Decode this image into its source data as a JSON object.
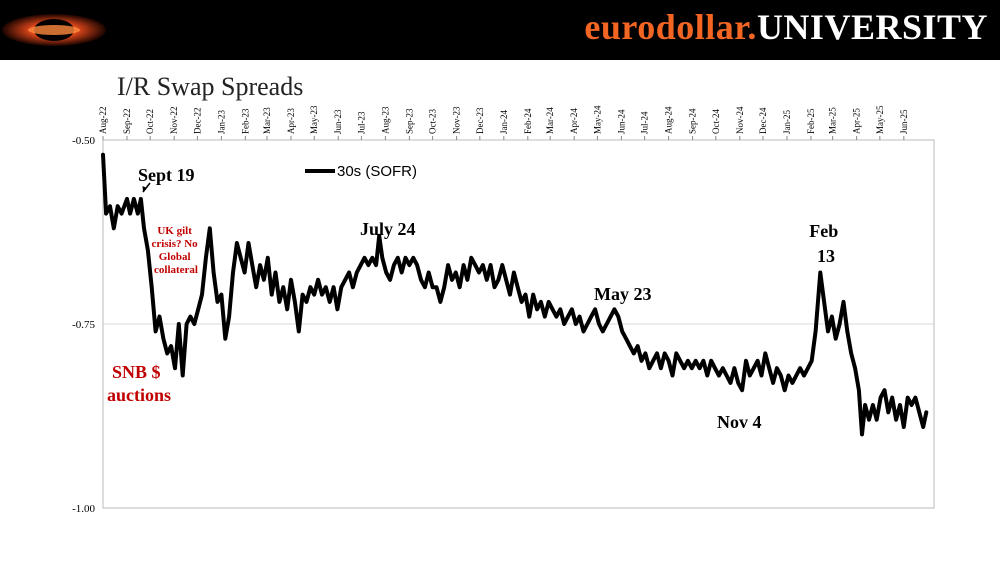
{
  "header": {
    "brand_part1": "eurodollar.",
    "brand_part2": "UNIVERSITY",
    "colors": {
      "bar": "#000000",
      "accent": "#f26522",
      "white": "#ffffff"
    }
  },
  "logo": {
    "icon": "eurodollar-university-logo"
  },
  "chart_data": {
    "type": "line",
    "title": "I/R Swap Spreads",
    "xlabel": "",
    "ylabel": "",
    "x_tick_labels": [
      "Aug-22",
      "Sep-22",
      "Oct-22",
      "Nov-22",
      "Dec-22",
      "Jan-23",
      "Feb-23",
      "Mar-23",
      "Apr-23",
      "May-23",
      "Jun-23",
      "Jul-23",
      "Aug-23",
      "Sep-23",
      "Oct-23",
      "Nov-23",
      "Dec-23",
      "Jan-24",
      "Feb-24",
      "Mar-24",
      "Apr-24",
      "May-24",
      "Jun-24",
      "Jul-24",
      "Aug-24",
      "Sep-24",
      "Oct-24",
      "Nov-24",
      "Dec-24",
      "Jan-25",
      "Feb-25",
      "Mar-25",
      "Apr-25",
      "May-25",
      "Jun-25"
    ],
    "y_tick_labels": [
      "-0.50",
      "-0.75",
      "-1.00"
    ],
    "ylim": [
      -1.0,
      -0.5
    ],
    "grid": "horizontal",
    "legend_position": "top-left",
    "series": [
      {
        "name": "30s (SOFR)",
        "color": "#000000",
        "points": [
          [
            "2022-08-01",
            -0.52
          ],
          [
            "2022-08-05",
            -0.6
          ],
          [
            "2022-08-10",
            -0.59
          ],
          [
            "2022-08-15",
            -0.62
          ],
          [
            "2022-08-20",
            -0.59
          ],
          [
            "2022-08-25",
            -0.6
          ],
          [
            "2022-09-01",
            -0.58
          ],
          [
            "2022-09-05",
            -0.6
          ],
          [
            "2022-09-10",
            -0.58
          ],
          [
            "2022-09-15",
            -0.6
          ],
          [
            "2022-09-19",
            -0.58
          ],
          [
            "2022-09-23",
            -0.62
          ],
          [
            "2022-09-28",
            -0.65
          ],
          [
            "2022-10-03",
            -0.7
          ],
          [
            "2022-10-08",
            -0.76
          ],
          [
            "2022-10-13",
            -0.74
          ],
          [
            "2022-10-18",
            -0.77
          ],
          [
            "2022-10-23",
            -0.79
          ],
          [
            "2022-10-28",
            -0.78
          ],
          [
            "2022-11-02",
            -0.81
          ],
          [
            "2022-11-07",
            -0.75
          ],
          [
            "2022-11-12",
            -0.82
          ],
          [
            "2022-11-17",
            -0.75
          ],
          [
            "2022-11-22",
            -0.74
          ],
          [
            "2022-11-27",
            -0.75
          ],
          [
            "2022-12-02",
            -0.73
          ],
          [
            "2022-12-07",
            -0.71
          ],
          [
            "2022-12-12",
            -0.66
          ],
          [
            "2022-12-17",
            -0.62
          ],
          [
            "2022-12-22",
            -0.68
          ],
          [
            "2022-12-27",
            -0.72
          ],
          [
            "2023-01-01",
            -0.71
          ],
          [
            "2023-01-06",
            -0.77
          ],
          [
            "2023-01-11",
            -0.74
          ],
          [
            "2023-01-16",
            -0.68
          ],
          [
            "2023-01-21",
            -0.64
          ],
          [
            "2023-01-26",
            -0.66
          ],
          [
            "2023-01-31",
            -0.68
          ],
          [
            "2023-02-05",
            -0.64
          ],
          [
            "2023-02-10",
            -0.67
          ],
          [
            "2023-02-15",
            -0.7
          ],
          [
            "2023-02-20",
            -0.67
          ],
          [
            "2023-02-25",
            -0.69
          ],
          [
            "2023-03-02",
            -0.66
          ],
          [
            "2023-03-07",
            -0.71
          ],
          [
            "2023-03-12",
            -0.68
          ],
          [
            "2023-03-17",
            -0.72
          ],
          [
            "2023-03-22",
            -0.7
          ],
          [
            "2023-03-27",
            -0.73
          ],
          [
            "2023-04-01",
            -0.69
          ],
          [
            "2023-04-06",
            -0.72
          ],
          [
            "2023-04-11",
            -0.76
          ],
          [
            "2023-04-16",
            -0.71
          ],
          [
            "2023-04-21",
            -0.72
          ],
          [
            "2023-04-26",
            -0.7
          ],
          [
            "2023-05-01",
            -0.71
          ],
          [
            "2023-05-06",
            -0.69
          ],
          [
            "2023-05-11",
            -0.71
          ],
          [
            "2023-05-16",
            -0.7
          ],
          [
            "2023-05-21",
            -0.72
          ],
          [
            "2023-05-26",
            -0.7
          ],
          [
            "2023-05-31",
            -0.73
          ],
          [
            "2023-06-05",
            -0.7
          ],
          [
            "2023-06-10",
            -0.69
          ],
          [
            "2023-06-15",
            -0.68
          ],
          [
            "2023-06-20",
            -0.7
          ],
          [
            "2023-06-25",
            -0.68
          ],
          [
            "2023-06-30",
            -0.67
          ],
          [
            "2023-07-05",
            -0.66
          ],
          [
            "2023-07-10",
            -0.67
          ],
          [
            "2023-07-15",
            -0.66
          ],
          [
            "2023-07-20",
            -0.67
          ],
          [
            "2023-07-24",
            -0.63
          ],
          [
            "2023-07-28",
            -0.66
          ],
          [
            "2023-08-02",
            -0.68
          ],
          [
            "2023-08-07",
            -0.69
          ],
          [
            "2023-08-12",
            -0.67
          ],
          [
            "2023-08-17",
            -0.66
          ],
          [
            "2023-08-22",
            -0.68
          ],
          [
            "2023-08-27",
            -0.66
          ],
          [
            "2023-09-01",
            -0.67
          ],
          [
            "2023-09-06",
            -0.66
          ],
          [
            "2023-09-11",
            -0.67
          ],
          [
            "2023-09-16",
            -0.69
          ],
          [
            "2023-09-21",
            -0.7
          ],
          [
            "2023-09-26",
            -0.68
          ],
          [
            "2023-10-01",
            -0.7
          ],
          [
            "2023-10-06",
            -0.7
          ],
          [
            "2023-10-11",
            -0.72
          ],
          [
            "2023-10-16",
            -0.7
          ],
          [
            "2023-10-21",
            -0.67
          ],
          [
            "2023-10-26",
            -0.69
          ],
          [
            "2023-10-31",
            -0.68
          ],
          [
            "2023-11-05",
            -0.7
          ],
          [
            "2023-11-10",
            -0.67
          ],
          [
            "2023-11-15",
            -0.69
          ],
          [
            "2023-11-20",
            -0.66
          ],
          [
            "2023-11-25",
            -0.67
          ],
          [
            "2023-11-30",
            -0.68
          ],
          [
            "2023-12-05",
            -0.67
          ],
          [
            "2023-12-10",
            -0.69
          ],
          [
            "2023-12-15",
            -0.67
          ],
          [
            "2023-12-20",
            -0.7
          ],
          [
            "2023-12-25",
            -0.69
          ],
          [
            "2023-12-30",
            -0.67
          ],
          [
            "2024-01-04",
            -0.69
          ],
          [
            "2024-01-09",
            -0.71
          ],
          [
            "2024-01-14",
            -0.68
          ],
          [
            "2024-01-19",
            -0.7
          ],
          [
            "2024-01-24",
            -0.72
          ],
          [
            "2024-01-29",
            -0.71
          ],
          [
            "2024-02-03",
            -0.74
          ],
          [
            "2024-02-08",
            -0.71
          ],
          [
            "2024-02-13",
            -0.73
          ],
          [
            "2024-02-18",
            -0.72
          ],
          [
            "2024-02-23",
            -0.74
          ],
          [
            "2024-02-28",
            -0.72
          ],
          [
            "2024-03-04",
            -0.73
          ],
          [
            "2024-03-09",
            -0.74
          ],
          [
            "2024-03-14",
            -0.73
          ],
          [
            "2024-03-19",
            -0.75
          ],
          [
            "2024-03-24",
            -0.74
          ],
          [
            "2024-03-29",
            -0.73
          ],
          [
            "2024-04-03",
            -0.75
          ],
          [
            "2024-04-08",
            -0.74
          ],
          [
            "2024-04-13",
            -0.76
          ],
          [
            "2024-04-18",
            -0.75
          ],
          [
            "2024-04-23",
            -0.74
          ],
          [
            "2024-04-28",
            -0.73
          ],
          [
            "2024-05-03",
            -0.75
          ],
          [
            "2024-05-08",
            -0.76
          ],
          [
            "2024-05-13",
            -0.75
          ],
          [
            "2024-05-18",
            -0.74
          ],
          [
            "2024-05-23",
            -0.73
          ],
          [
            "2024-05-28",
            -0.74
          ],
          [
            "2024-06-02",
            -0.76
          ],
          [
            "2024-06-07",
            -0.77
          ],
          [
            "2024-06-12",
            -0.78
          ],
          [
            "2024-06-17",
            -0.79
          ],
          [
            "2024-06-22",
            -0.78
          ],
          [
            "2024-06-27",
            -0.8
          ],
          [
            "2024-07-02",
            -0.79
          ],
          [
            "2024-07-07",
            -0.81
          ],
          [
            "2024-07-12",
            -0.8
          ],
          [
            "2024-07-17",
            -0.79
          ],
          [
            "2024-07-22",
            -0.81
          ],
          [
            "2024-07-27",
            -0.79
          ],
          [
            "2024-08-01",
            -0.8
          ],
          [
            "2024-08-06",
            -0.82
          ],
          [
            "2024-08-11",
            -0.79
          ],
          [
            "2024-08-16",
            -0.8
          ],
          [
            "2024-08-21",
            -0.81
          ],
          [
            "2024-08-26",
            -0.8
          ],
          [
            "2024-08-31",
            -0.81
          ],
          [
            "2024-09-05",
            -0.8
          ],
          [
            "2024-09-10",
            -0.81
          ],
          [
            "2024-09-15",
            -0.8
          ],
          [
            "2024-09-20",
            -0.82
          ],
          [
            "2024-09-25",
            -0.8
          ],
          [
            "2024-09-30",
            -0.81
          ],
          [
            "2024-10-05",
            -0.82
          ],
          [
            "2024-10-10",
            -0.81
          ],
          [
            "2024-10-15",
            -0.82
          ],
          [
            "2024-10-20",
            -0.83
          ],
          [
            "2024-10-25",
            -0.81
          ],
          [
            "2024-10-30",
            -0.83
          ],
          [
            "2024-11-04",
            -0.84
          ],
          [
            "2024-11-09",
            -0.8
          ],
          [
            "2024-11-14",
            -0.82
          ],
          [
            "2024-11-19",
            -0.81
          ],
          [
            "2024-11-24",
            -0.8
          ],
          [
            "2024-11-29",
            -0.82
          ],
          [
            "2024-12-04",
            -0.79
          ],
          [
            "2024-12-09",
            -0.81
          ],
          [
            "2024-12-14",
            -0.83
          ],
          [
            "2024-12-19",
            -0.81
          ],
          [
            "2024-12-24",
            -0.82
          ],
          [
            "2024-12-29",
            -0.84
          ],
          [
            "2025-01-03",
            -0.82
          ],
          [
            "2025-01-08",
            -0.83
          ],
          [
            "2025-01-13",
            -0.82
          ],
          [
            "2025-01-18",
            -0.81
          ],
          [
            "2025-01-23",
            -0.82
          ],
          [
            "2025-01-28",
            -0.81
          ],
          [
            "2025-02-02",
            -0.8
          ],
          [
            "2025-02-07",
            -0.76
          ],
          [
            "2025-02-13",
            -0.68
          ],
          [
            "2025-02-18",
            -0.72
          ],
          [
            "2025-02-23",
            -0.76
          ],
          [
            "2025-02-28",
            -0.74
          ],
          [
            "2025-03-05",
            -0.77
          ],
          [
            "2025-03-10",
            -0.75
          ],
          [
            "2025-03-15",
            -0.72
          ],
          [
            "2025-03-20",
            -0.76
          ],
          [
            "2025-03-25",
            -0.79
          ],
          [
            "2025-03-30",
            -0.81
          ],
          [
            "2025-04-04",
            -0.84
          ],
          [
            "2025-04-08",
            -0.9
          ],
          [
            "2025-04-12",
            -0.86
          ],
          [
            "2025-04-17",
            -0.88
          ],
          [
            "2025-04-22",
            -0.86
          ],
          [
            "2025-04-27",
            -0.88
          ],
          [
            "2025-05-02",
            -0.85
          ],
          [
            "2025-05-07",
            -0.84
          ],
          [
            "2025-05-12",
            -0.87
          ],
          [
            "2025-05-17",
            -0.85
          ],
          [
            "2025-05-22",
            -0.88
          ],
          [
            "2025-05-27",
            -0.86
          ],
          [
            "2025-06-01",
            -0.89
          ],
          [
            "2025-06-06",
            -0.85
          ],
          [
            "2025-06-11",
            -0.86
          ],
          [
            "2025-06-16",
            -0.85
          ],
          [
            "2025-06-21",
            -0.87
          ],
          [
            "2025-06-26",
            -0.89
          ],
          [
            "2025-06-30",
            -0.87
          ]
        ]
      }
    ],
    "annotations": [
      {
        "text": "Sept 19",
        "color": "#000000"
      },
      {
        "text": "UK gilt crisis? No Global collateral",
        "color": "#c00000"
      },
      {
        "text": "SNB $ auctions",
        "color": "#c00000"
      },
      {
        "text": "July 24",
        "color": "#000000"
      },
      {
        "text": "May 23",
        "color": "#000000"
      },
      {
        "text": "Nov 4",
        "color": "#000000"
      },
      {
        "text": "Feb 13",
        "color": "#000000"
      }
    ]
  }
}
